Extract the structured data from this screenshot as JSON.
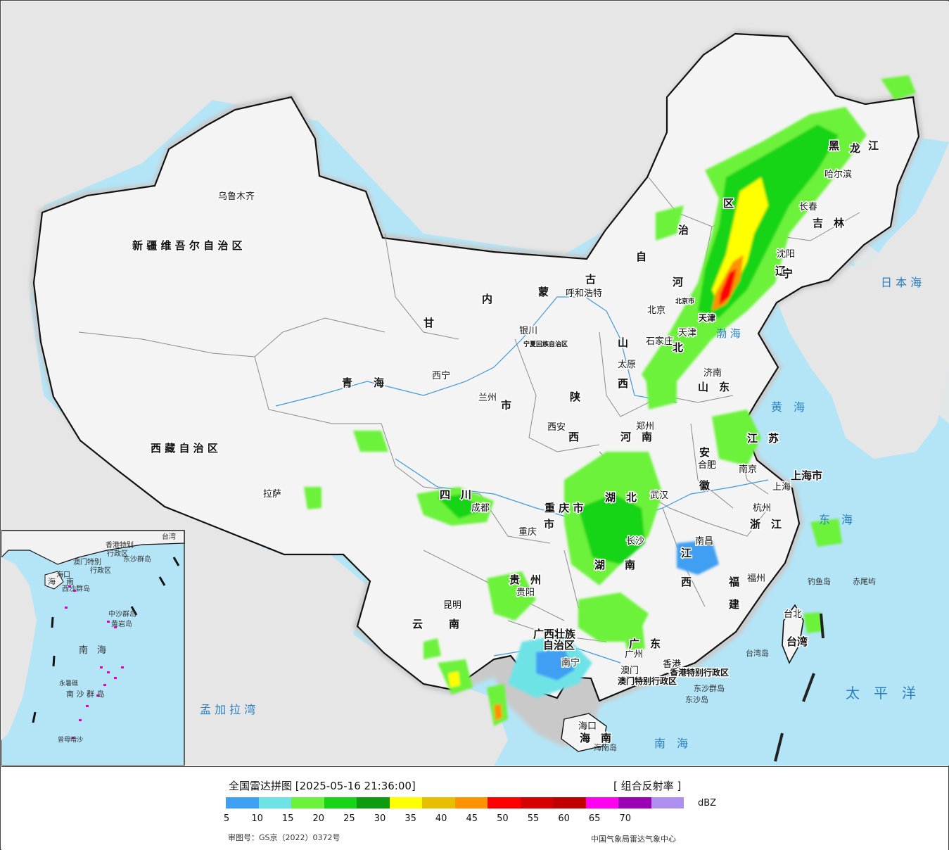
{
  "title": "全国雷达拼图 [2025-05-16 21:36:00]",
  "product": "[ 组合反射率 ]",
  "legend": {
    "unit": "dBZ",
    "ticks": [
      "5",
      "10",
      "15",
      "20",
      "25",
      "30",
      "35",
      "40",
      "45",
      "50",
      "55",
      "60",
      "65",
      "70"
    ],
    "colors": [
      "#3f9ff2",
      "#6ee3e6",
      "#6cf23a",
      "#17d417",
      "#0f9b0f",
      "#ffff00",
      "#e6c000",
      "#ff9200",
      "#ff0000",
      "#d60000",
      "#c00000",
      "#ff00f0",
      "#9a00b4",
      "#ad90f0"
    ]
  },
  "footer": {
    "approval": "审图号：GS京（2022）0372号",
    "agency": "中国气象局雷达气象中心"
  },
  "colors": {
    "sea": "#b3e5f7",
    "land": "#f2f2f2",
    "outside": "#e6e6e6",
    "border": "#111111",
    "province": "#888888",
    "river": "#2b8fd6"
  },
  "cities": [
    {
      "name": "乌鲁木齐"
    },
    {
      "name": "拉萨"
    },
    {
      "name": "西宁"
    },
    {
      "name": "兰州"
    },
    {
      "name": "银川"
    },
    {
      "name": "呼和浩特"
    },
    {
      "name": "北京"
    },
    {
      "name": "天津"
    },
    {
      "name": "石家庄"
    },
    {
      "name": "太原"
    },
    {
      "name": "济南"
    },
    {
      "name": "郑州"
    },
    {
      "name": "西安"
    },
    {
      "name": "成都"
    },
    {
      "name": "重庆"
    },
    {
      "name": "武汉"
    },
    {
      "name": "合肥"
    },
    {
      "name": "南京"
    },
    {
      "name": "上海"
    },
    {
      "name": "杭州"
    },
    {
      "name": "南昌"
    },
    {
      "name": "长沙"
    },
    {
      "name": "福州"
    },
    {
      "name": "台北"
    },
    {
      "name": "贵阳"
    },
    {
      "name": "昆明"
    },
    {
      "name": "南宁"
    },
    {
      "name": "广州"
    },
    {
      "name": "香港"
    },
    {
      "name": "澳门"
    },
    {
      "name": "海口"
    },
    {
      "name": "沈阳"
    },
    {
      "name": "长春"
    },
    {
      "name": "哈尔滨"
    }
  ],
  "regions": [
    {
      "name": "新 疆 维 吾 尔 自 治 区"
    },
    {
      "name": "西 藏 自 治 区"
    },
    {
      "name": "青　　海"
    },
    {
      "name": "甘"
    },
    {
      "name": "内"
    },
    {
      "name": "蒙"
    },
    {
      "name": "古"
    },
    {
      "name": "自"
    },
    {
      "name": "治"
    },
    {
      "name": "区"
    },
    {
      "name": "黑"
    },
    {
      "name": "龙"
    },
    {
      "name": "江"
    },
    {
      "name": "吉　林"
    },
    {
      "name": "辽"
    },
    {
      "name": "宁"
    },
    {
      "name": "河"
    },
    {
      "name": "北"
    },
    {
      "name": "山"
    },
    {
      "name": "西"
    },
    {
      "name": "山　东"
    },
    {
      "name": "河　南"
    },
    {
      "name": "陕"
    },
    {
      "name": "西"
    },
    {
      "name": "四　川"
    },
    {
      "name": "重 庆 市"
    },
    {
      "name": "湖　北"
    },
    {
      "name": "湖"
    },
    {
      "name": "南"
    },
    {
      "name": "安"
    },
    {
      "name": "徽"
    },
    {
      "name": "江　苏"
    },
    {
      "name": "上海市"
    },
    {
      "name": "浙　江"
    },
    {
      "name": "江"
    },
    {
      "name": "西"
    },
    {
      "name": "福"
    },
    {
      "name": "建"
    },
    {
      "name": "贵　州"
    },
    {
      "name": "云"
    },
    {
      "name": "南"
    },
    {
      "name": "广西壮族"
    },
    {
      "name": "自治区"
    },
    {
      "name": "广　东"
    },
    {
      "name": "海　南"
    },
    {
      "name": "台湾"
    },
    {
      "name": "香港特别行政区"
    },
    {
      "name": "澳门特别行政区"
    },
    {
      "name": "宁夏回族自治区"
    },
    {
      "name": "北京市"
    },
    {
      "name": "天津"
    },
    {
      "name": "市"
    },
    {
      "name": "市"
    }
  ],
  "seas": [
    {
      "name": "日 本 海"
    },
    {
      "name": "渤 海"
    },
    {
      "name": "黄　海"
    },
    {
      "name": "东　海"
    },
    {
      "name": "南　海"
    },
    {
      "name": "太　平　洋"
    },
    {
      "name": "孟 加 拉 湾"
    }
  ],
  "islands": [
    {
      "name": "钓鱼岛"
    },
    {
      "name": "赤尾屿"
    },
    {
      "name": "台湾岛"
    },
    {
      "name": "东沙群岛"
    },
    {
      "name": "东沙岛"
    },
    {
      "name": "海南岛"
    }
  ],
  "inset_labels": [
    {
      "name": "海"
    },
    {
      "name": "南"
    },
    {
      "name": "海口"
    },
    {
      "name": "香港特别"
    },
    {
      "name": "行政区"
    },
    {
      "name": "澳门特别"
    },
    {
      "name": "行政区"
    },
    {
      "name": "东沙群岛"
    },
    {
      "name": "西沙群岛"
    },
    {
      "name": "中沙群岛"
    },
    {
      "name": "南　海"
    },
    {
      "name": "黄岩岛"
    },
    {
      "name": "南 沙 群 岛"
    },
    {
      "name": "曾母暗沙"
    },
    {
      "name": "永暑礁"
    },
    {
      "name": "台湾"
    }
  ]
}
